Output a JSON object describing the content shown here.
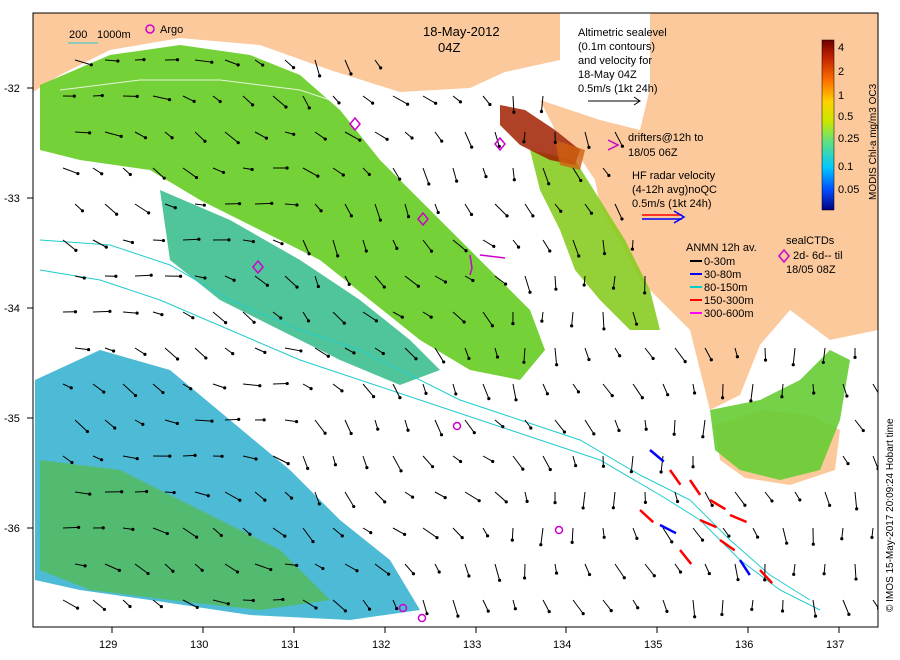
{
  "title": {
    "date": "18-May-2012",
    "time": "04Z"
  },
  "scale_bar": {
    "label_200": "200",
    "label_1000": "1000m"
  },
  "argo_legend": {
    "label": "Argo"
  },
  "altimetry_legend": {
    "lines": [
      "Altimetric sealevel",
      "(0.1m contours)",
      "and velocity for",
      "18-May 04Z",
      "0.5m/s (1kt 24h)"
    ]
  },
  "drifter_legend": {
    "lines": [
      "drifters@12h to",
      "18/05 06Z"
    ]
  },
  "hf_radar_legend": {
    "lines": [
      "HF radar velocity",
      "(4-12h avg)noQC",
      "0.5m/s (1kt 24h)"
    ]
  },
  "anmn_legend": {
    "title": "ANMN 12h av.",
    "items": [
      {
        "label": "0-30m",
        "color": "#000000"
      },
      {
        "label": "30-80m",
        "color": "#0000ff"
      },
      {
        "label": "80-150m",
        "color": "#00cccc"
      },
      {
        "label": "150-300m",
        "color": "#ff0000"
      },
      {
        "label": "300-600m",
        "color": "#ff00ff"
      }
    ]
  },
  "sealctd_legend": {
    "lines": [
      "sealCTDs",
      "2d- 6d-- til",
      "18/05 08Z"
    ]
  },
  "colorbar": {
    "title": "MODIS Chl-a mg/m3 OC3",
    "ticks": [
      "4",
      "2",
      "1",
      "0.5",
      "0.25",
      "0.1",
      "0.05"
    ],
    "colors": [
      "#00007f",
      "#0050ff",
      "#00c8ff",
      "#60e080",
      "#c8e800",
      "#ffd000",
      "#ff7000",
      "#c02000",
      "#700000"
    ]
  },
  "credit": "© IMOS 15-May-2017 20:09:24 Hobart time",
  "axes": {
    "x_ticks": [
      "129",
      "130",
      "131",
      "132",
      "133",
      "134",
      "135",
      "136",
      "137"
    ],
    "y_ticks": [
      "-32",
      "-33",
      "-34",
      "-35",
      "-36"
    ]
  },
  "colors": {
    "land": "#fbc99c",
    "chl_high": "#a02000",
    "chl_mid": "#66cc22",
    "chl_low": "#22aacc",
    "argo": "#cc00cc",
    "contour": "#22cccc"
  }
}
